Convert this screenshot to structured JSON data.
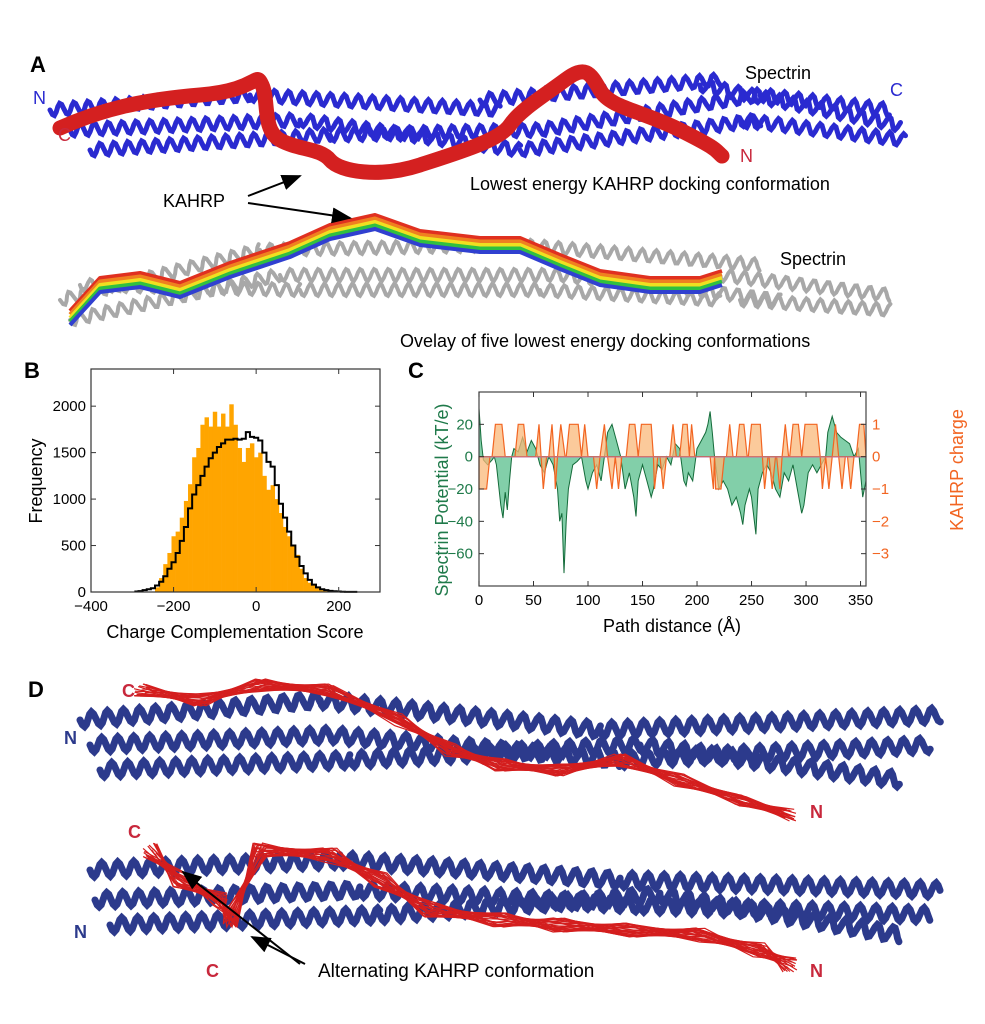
{
  "panel_a": {
    "label": "A",
    "spectrin_label_top": "Spectrin",
    "spectrin_label_overlay": "Spectrin",
    "spectrin_n": "N",
    "spectrin_c": "C",
    "kahrp_n": "N",
    "kahrp_c": "C",
    "kahrp_label": "KAHRP",
    "caption_top": "Lowest energy KAHRP docking conformation",
    "caption_overlay": "Ovelay of five lowest energy docking conformations",
    "colors": {
      "spectrin": "#2a2ad0",
      "kahrp": "#d42020",
      "overlay_spectrin": "#a8a8a8",
      "overlay_paths": [
        "#e03020",
        "#f08020",
        "#f0e020",
        "#30c040",
        "#3040d0"
      ]
    }
  },
  "panel_d": {
    "label": "D",
    "top": {
      "kahrp_c": "C",
      "spectrin_n": "N",
      "kahrp_n": "N"
    },
    "bottom": {
      "kahrp_c1": "C",
      "kahrp_c2": "C",
      "spectrin_n": "N",
      "kahrp_n": "N"
    },
    "annotation": "Alternating KAHRP conformation",
    "colors": {
      "spectrin": "#2c3a8c",
      "kahrp": "#d41e1e",
      "n_label": "#2c3a8c",
      "c_label": "#c8283c"
    }
  },
  "chart_data": [
    {
      "panel_label": "B",
      "type": "bar",
      "xlabel": "Charge Complementation Score",
      "ylabel": "Frequency",
      "xlim": [
        -400,
        300
      ],
      "ylim": [
        0,
        2400
      ],
      "x_ticks": [
        "−400",
        "−200",
        "0",
        "200"
      ],
      "x_tick_values": [
        -400,
        -200,
        0,
        200
      ],
      "y_ticks": [
        "0",
        "500",
        "1000",
        "1500",
        "2000"
      ],
      "y_tick_values": [
        0,
        500,
        1000,
        1500,
        2000
      ],
      "bin_width": 10,
      "grid": false,
      "series": [
        {
          "style": "filled histogram",
          "color": "#ffa500",
          "x": [
            -240,
            -230,
            -220,
            -210,
            -200,
            -190,
            -180,
            -170,
            -160,
            -150,
            -140,
            -130,
            -120,
            -110,
            -100,
            -90,
            -80,
            -70,
            -60,
            -50,
            -40,
            -30,
            -20,
            -10,
            0,
            10,
            20,
            30,
            40,
            50,
            60,
            70,
            80,
            90,
            100,
            110,
            120,
            130,
            140,
            150,
            160,
            170
          ],
          "values": [
            50,
            150,
            300,
            420,
            600,
            650,
            800,
            980,
            1160,
            1450,
            1550,
            1800,
            1880,
            1780,
            1940,
            1780,
            1920,
            1780,
            2020,
            1800,
            1550,
            1400,
            1550,
            1600,
            1450,
            1500,
            1250,
            1100,
            1150,
            1000,
            850,
            700,
            600,
            500,
            400,
            250,
            150,
            100,
            70,
            40,
            20,
            10
          ]
        },
        {
          "style": "step outline",
          "color": "#000000",
          "x": [
            -290,
            -280,
            -270,
            -260,
            -250,
            -240,
            -230,
            -220,
            -210,
            -200,
            -190,
            -180,
            -170,
            -160,
            -150,
            -140,
            -130,
            -120,
            -110,
            -100,
            -90,
            -80,
            -70,
            -60,
            -50,
            -40,
            -30,
            -20,
            -10,
            0,
            10,
            20,
            30,
            40,
            50,
            60,
            70,
            80,
            90,
            100,
            110,
            120,
            130,
            140,
            150,
            160,
            170,
            180,
            190,
            200,
            210,
            220,
            230,
            240
          ],
          "values": [
            5,
            10,
            20,
            30,
            40,
            70,
            110,
            170,
            250,
            320,
            420,
            550,
            700,
            900,
            1050,
            1150,
            1250,
            1350,
            1440,
            1500,
            1560,
            1600,
            1640,
            1640,
            1650,
            1640,
            1650,
            1720,
            1670,
            1660,
            1630,
            1500,
            1400,
            1350,
            1150,
            950,
            800,
            650,
            500,
            380,
            280,
            200,
            130,
            80,
            50,
            30,
            20,
            12,
            8,
            5,
            3,
            2,
            1,
            1
          ]
        }
      ]
    },
    {
      "panel_label": "C",
      "type": "area",
      "xlabel": "Path distance (Å)",
      "ylabel_left": "Spectrin Potential (kT/e)",
      "ylabel_right": "KAHRP charge",
      "xlim": [
        0,
        355
      ],
      "ylim_left": [
        -80,
        40
      ],
      "ylim_right": [
        -4,
        2
      ],
      "x_ticks": [
        "0",
        "50",
        "100",
        "150",
        "200",
        "250",
        "300",
        "350"
      ],
      "x_tick_values": [
        0,
        50,
        100,
        150,
        200,
        250,
        300,
        350
      ],
      "y_ticks_left": [
        "20",
        "0",
        "−20",
        "−40",
        "−60"
      ],
      "y_tick_values_left": [
        20,
        0,
        -20,
        -40,
        -60
      ],
      "y_ticks_right": [
        "1",
        "0",
        "−1",
        "−2",
        "−3"
      ],
      "y_tick_values_right": [
        1,
        0,
        -1,
        -2,
        -3
      ],
      "colors": {
        "potential_fill": "#6cc79a",
        "potential_line": "#146b3a",
        "charge_fill": "#f9b87a",
        "charge_line": "#f26522",
        "left_axis": "#1f7a4a",
        "right_axis": "#f26522"
      },
      "spectrin_potential": {
        "x": [
          0,
          2,
          4,
          8,
          12,
          14,
          16,
          20,
          22,
          24,
          26,
          28,
          30,
          32,
          36,
          40,
          44,
          48,
          52,
          56,
          60,
          64,
          68,
          72,
          74,
          76,
          78,
          80,
          82,
          86,
          90,
          94,
          98,
          100,
          104,
          108,
          112,
          116,
          118,
          122,
          126,
          130,
          134,
          138,
          142,
          144,
          146,
          150,
          154,
          158,
          160,
          164,
          168,
          172,
          176,
          180,
          184,
          188,
          190,
          192,
          196,
          200,
          204,
          208,
          210,
          212,
          214,
          216,
          220,
          224,
          228,
          232,
          236,
          240,
          242,
          244,
          248,
          250,
          254,
          256,
          260,
          264,
          268,
          272,
          276,
          280,
          284,
          288,
          292,
          296,
          298,
          302,
          306,
          310,
          314,
          318,
          320,
          324,
          328,
          332,
          336,
          340,
          344,
          348,
          352,
          355
        ],
        "y": [
          30,
          10,
          -2,
          -5,
          -2,
          0,
          -5,
          -30,
          -38,
          -22,
          -33,
          -15,
          0,
          5,
          3,
          12,
          3,
          10,
          5,
          -5,
          -10,
          0,
          -5,
          -20,
          -40,
          -35,
          -72,
          -40,
          -20,
          -5,
          -3,
          0,
          -15,
          -20,
          -10,
          -5,
          -15,
          5,
          15,
          20,
          10,
          0,
          -20,
          -10,
          -25,
          -37,
          -15,
          -5,
          -15,
          -25,
          -20,
          -5,
          -8,
          0,
          -5,
          8,
          5,
          -15,
          -18,
          -10,
          -15,
          5,
          10,
          15,
          20,
          28,
          15,
          0,
          -20,
          -15,
          -20,
          -30,
          -25,
          -35,
          -42,
          -30,
          -20,
          -25,
          -48,
          -20,
          -10,
          -5,
          -10,
          -20,
          -25,
          -10,
          -15,
          -5,
          -20,
          -35,
          -30,
          -10,
          -5,
          -10,
          -5,
          0,
          15,
          25,
          15,
          12,
          10,
          8,
          0,
          5,
          -25,
          -15
        ]
      },
      "kahrp_charge": {
        "points": [
          [
            0,
            -1
          ],
          [
            7,
            -1
          ],
          [
            10,
            0
          ],
          [
            12,
            0
          ],
          [
            15,
            1
          ],
          [
            21,
            1
          ],
          [
            24,
            0
          ],
          [
            33,
            0
          ],
          [
            36,
            1
          ],
          [
            41,
            1
          ],
          [
            44,
            0
          ],
          [
            52,
            0
          ],
          [
            55,
            1
          ],
          [
            57,
            0
          ],
          [
            59,
            -1
          ],
          [
            62,
            0
          ],
          [
            64,
            0
          ],
          [
            67,
            1
          ],
          [
            69,
            0
          ],
          [
            70,
            -1
          ],
          [
            72,
            0
          ],
          [
            75,
            1
          ],
          [
            79,
            0
          ],
          [
            80,
            0
          ],
          [
            83,
            1
          ],
          [
            91,
            1
          ],
          [
            94,
            0
          ],
          [
            97,
            1
          ],
          [
            100,
            0
          ],
          [
            105,
            0
          ],
          [
            108,
            -1
          ],
          [
            111,
            0
          ],
          [
            115,
            1
          ],
          [
            118,
            0
          ],
          [
            122,
            -1
          ],
          [
            125,
            0
          ],
          [
            128,
            -1
          ],
          [
            131,
            0
          ],
          [
            135,
            0
          ],
          [
            138,
            1
          ],
          [
            143,
            1
          ],
          [
            146,
            0
          ],
          [
            149,
            1
          ],
          [
            158,
            1
          ],
          [
            160,
            0
          ],
          [
            161,
            -1
          ],
          [
            164,
            0
          ],
          [
            166,
            0
          ],
          [
            169,
            -1
          ],
          [
            172,
            0
          ],
          [
            175,
            0
          ],
          [
            178,
            1
          ],
          [
            181,
            0
          ],
          [
            184,
            0
          ],
          [
            187,
            1
          ],
          [
            191,
            1
          ],
          [
            193,
            0
          ],
          [
            195,
            1
          ],
          [
            198,
            0
          ],
          [
            212,
            0
          ],
          [
            215,
            -1
          ],
          [
            216,
            0
          ],
          [
            217,
            -1
          ],
          [
            222,
            -1
          ],
          [
            225,
            0
          ],
          [
            227,
            0
          ],
          [
            230,
            1
          ],
          [
            233,
            0
          ],
          [
            236,
            0
          ],
          [
            239,
            1
          ],
          [
            243,
            1
          ],
          [
            246,
            0
          ],
          [
            247,
            0
          ],
          [
            250,
            1
          ],
          [
            258,
            1
          ],
          [
            260,
            0
          ],
          [
            262,
            -1
          ],
          [
            265,
            0
          ],
          [
            266,
            0
          ],
          [
            269,
            -1
          ],
          [
            272,
            0
          ],
          [
            273,
            0
          ],
          [
            276,
            -1
          ],
          [
            278,
            0
          ],
          [
            281,
            1
          ],
          [
            284,
            0
          ],
          [
            285,
            0
          ],
          [
            288,
            1
          ],
          [
            293,
            1
          ],
          [
            296,
            0
          ],
          [
            299,
            1
          ],
          [
            310,
            1
          ],
          [
            313,
            0
          ],
          [
            315,
            -1
          ],
          [
            318,
            0
          ],
          [
            321,
            -1
          ],
          [
            324,
            0
          ],
          [
            327,
            1
          ],
          [
            330,
            0
          ],
          [
            333,
            -1
          ],
          [
            336,
            0
          ],
          [
            338,
            0
          ],
          [
            341,
            -1
          ],
          [
            344,
            0
          ],
          [
            346,
            0
          ],
          [
            349,
            1
          ],
          [
            353,
            1
          ],
          [
            355,
            0
          ]
        ]
      }
    }
  ]
}
